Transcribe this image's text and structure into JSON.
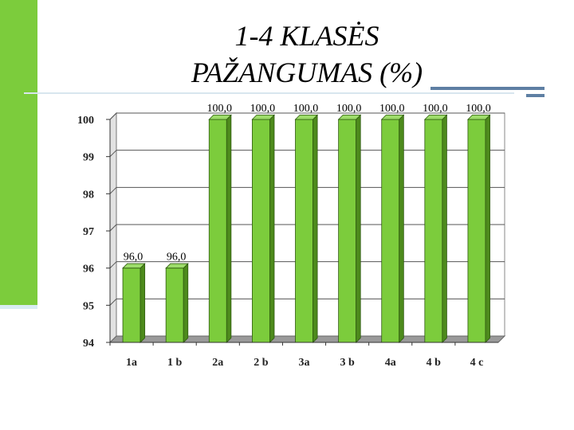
{
  "title_lines": [
    "1-4 KLASĖS",
    "PAŽANGUMAS (%)"
  ],
  "colors": {
    "accent_green": "#7ccc3c",
    "bar_face": "#7ccc3c",
    "bar_side": "#4d8a1c",
    "bar_top": "#9ddc6a",
    "rule_blue": "#5e7fa3"
  },
  "chart_data": {
    "type": "bar",
    "categories": [
      "1a",
      "1 b",
      "2a",
      "2 b",
      "3a",
      "3 b",
      "4a",
      "4 b",
      "4 c"
    ],
    "values": [
      96.0,
      96.0,
      100.0,
      100.0,
      100.0,
      100.0,
      100.0,
      100.0,
      100.0
    ],
    "data_labels": [
      "96,0",
      "96,0",
      "100,0",
      "100,0",
      "100,0",
      "100,0",
      "100,0",
      "100,0",
      "100,0"
    ],
    "yticks": [
      "94",
      "95",
      "96",
      "97",
      "98",
      "99",
      "100"
    ],
    "ylim": [
      94,
      100
    ],
    "grid": true,
    "three_d": true
  }
}
